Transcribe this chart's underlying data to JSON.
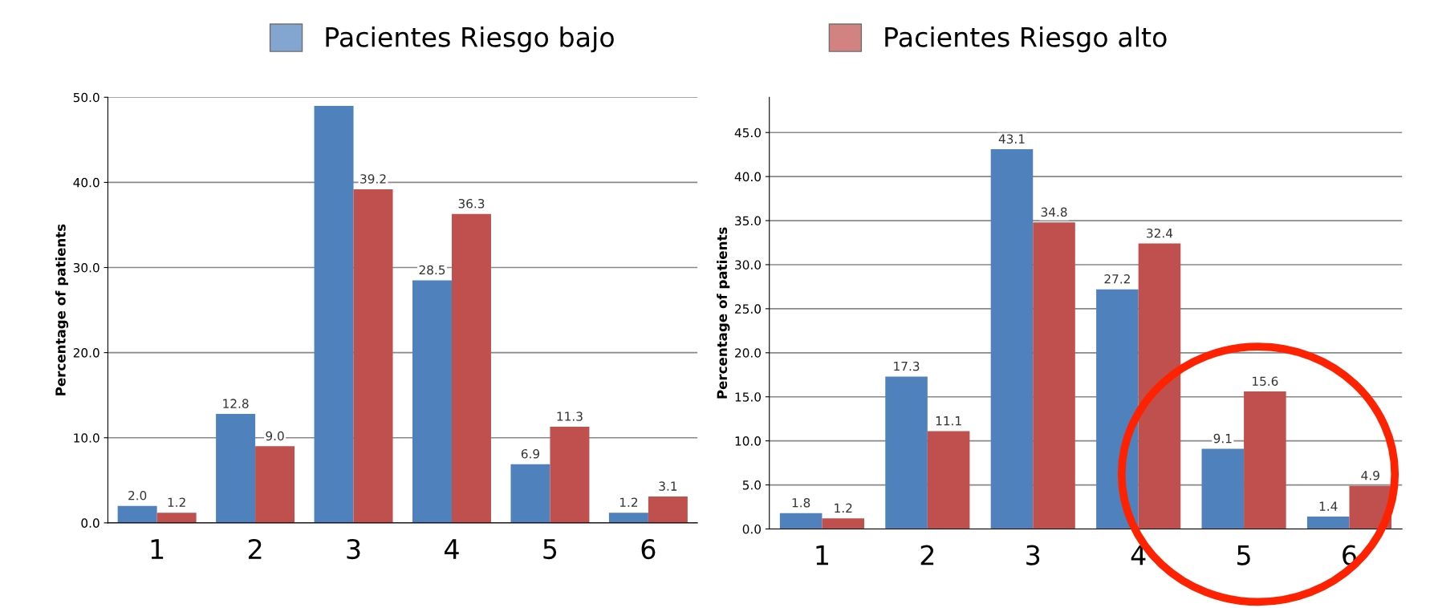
{
  "chart_data": [
    {
      "type": "bar",
      "ylabel": "Percentage of patients",
      "categories": [
        "1",
        "2",
        "3",
        "4",
        "5",
        "6"
      ],
      "series": [
        {
          "name": "Pacientes Riesgo bajo",
          "color": "#4f81bd",
          "values": [
            2.0,
            12.8,
            49.0,
            28.5,
            6.9,
            1.2
          ],
          "value_labels": [
            "2.0",
            "12.8",
            null,
            "28.5",
            "6.9",
            "1.2"
          ]
        },
        {
          "name": "Pacientes Riesgo alto",
          "color": "#c0504d",
          "values": [
            1.2,
            9.0,
            39.2,
            36.3,
            11.3,
            3.1
          ],
          "value_labels": [
            "1.2",
            "9.0",
            "39.2",
            "36.3",
            "11.3",
            "3.1"
          ]
        }
      ],
      "ylim": [
        0,
        50
      ],
      "yticks": [
        {
          "value": 0,
          "label": "0.0"
        },
        {
          "value": 10,
          "label": "10.0"
        },
        {
          "value": 20,
          "label": "20.0"
        },
        {
          "value": 30,
          "label": "30.0"
        },
        {
          "value": 40,
          "label": "40.0"
        },
        {
          "value": 50,
          "label": "50.0"
        }
      ],
      "grid": "y",
      "legend": "top"
    },
    {
      "type": "bar",
      "ylabel": "Percentage of patients",
      "categories": [
        "1",
        "2",
        "3",
        "4",
        "5",
        "6"
      ],
      "series": [
        {
          "color": "#4f81bd",
          "values": [
            1.8,
            17.3,
            43.1,
            27.2,
            9.1,
            1.4
          ]
        },
        {
          "color": "#c0504d",
          "values": [
            1.2,
            11.1,
            34.8,
            32.4,
            15.6,
            4.9
          ]
        }
      ],
      "data_labels": true,
      "ylim": [
        0,
        49
      ],
      "yticks": [
        {
          "value": 0,
          "label": "0.0"
        },
        {
          "value": 5,
          "label": "5.0"
        },
        {
          "value": 10,
          "label": "10.0"
        },
        {
          "value": 15,
          "label": "15.0"
        },
        {
          "value": 20,
          "label": "20.0"
        },
        {
          "value": 25,
          "label": "25.0"
        },
        {
          "value": 30,
          "label": "30.0"
        },
        {
          "value": 35,
          "label": "35.0"
        },
        {
          "value": 40,
          "label": "40.0"
        },
        {
          "value": 45,
          "label": "45.0"
        }
      ],
      "grid": "y"
    }
  ]
}
